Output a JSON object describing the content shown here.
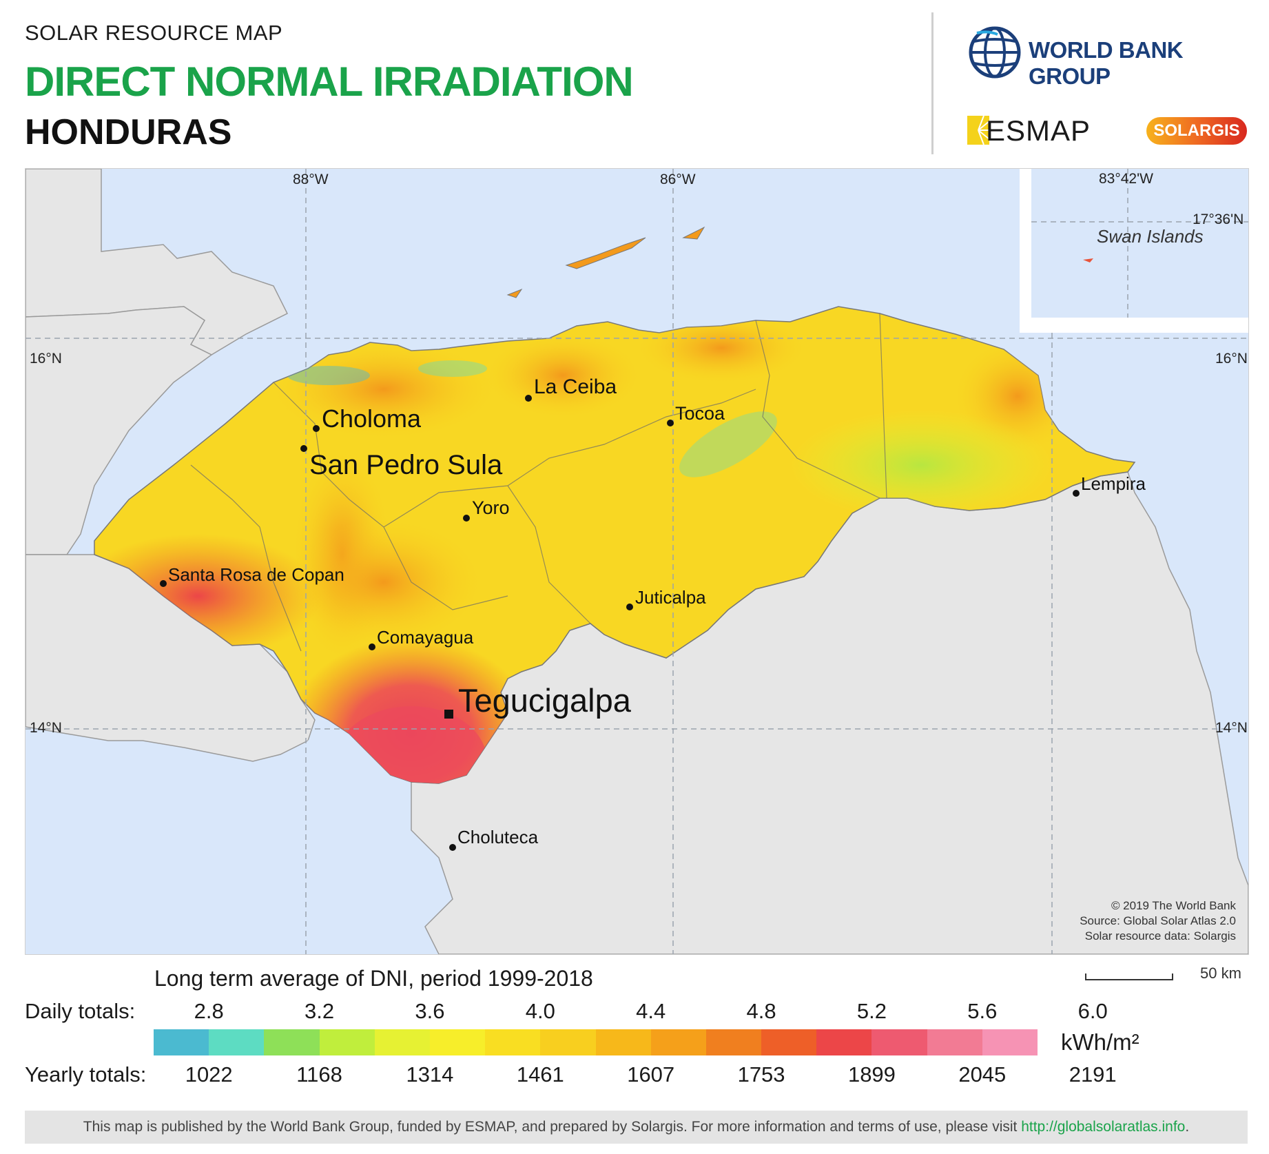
{
  "header": {
    "kicker": "SOLAR RESOURCE MAP",
    "title": "DIRECT NORMAL IRRADIATION",
    "country": "HONDURAS"
  },
  "logos": {
    "world_bank": "WORLD BANK GROUP",
    "esmap": "ESMAP",
    "solargis": "SOLARGIS"
  },
  "map": {
    "grid_labels": {
      "lon_88": "88°W",
      "lon_86": "86°W",
      "lat_16_left": "16°N",
      "lat_16_right": "16°N",
      "lat_14_left": "14°N",
      "lat_14_right": "14°N"
    },
    "inset": {
      "lon": "83°42'W",
      "lat": "17°36'N",
      "label": "Swan Islands"
    },
    "cities": {
      "choloma": "Choloma",
      "san_pedro_sula": "San Pedro Sula",
      "la_ceiba": "La Ceiba",
      "tocoa": "Tocoa",
      "yoro": "Yoro",
      "lempira": "Lempira",
      "santa_rosa": "Santa Rosa de Copan",
      "juticalpa": "Juticalpa",
      "comayagua": "Comayagua",
      "tegucigalpa": "Tegucigalpa",
      "choluteca": "Choluteca"
    },
    "credits": {
      "line1": "© 2019 The World Bank",
      "line2": "Source: Global Solar Atlas 2.0",
      "line3": "Solar resource data: Solargis"
    },
    "colors": {
      "sea": "#d9e7fa",
      "land_other": "#e6e6e6",
      "border": "#555555"
    }
  },
  "legend": {
    "title": "Long term average of DNI, period 1999-2018",
    "daily_label": "Daily totals:",
    "yearly_label": "Yearly totals:",
    "daily_ticks": [
      "2.8",
      "3.2",
      "3.6",
      "4.0",
      "4.4",
      "4.8",
      "5.2",
      "5.6",
      "6.0"
    ],
    "yearly_ticks": [
      "1022",
      "1168",
      "1314",
      "1461",
      "1607",
      "1753",
      "1899",
      "2045",
      "2191"
    ],
    "unit": "kWh/m²",
    "colors": [
      "#4bbad0",
      "#5ddcc2",
      "#8ee058",
      "#c0ee3c",
      "#e6f133",
      "#f7ee2a",
      "#f9de22",
      "#f8cf1f",
      "#f7b81a",
      "#f5a01a",
      "#f07f1f",
      "#ee5f28",
      "#ec4648",
      "#ee5a70",
      "#f27b94",
      "#f693b4"
    ]
  },
  "scale": {
    "label": "50 km"
  },
  "footer": {
    "text": "This map is published by the World Bank Group, funded by ESMAP, and prepared by Solargis. For more information and terms of use, please visit",
    "link": "http://globalsolaratlas.info",
    "end": "."
  }
}
